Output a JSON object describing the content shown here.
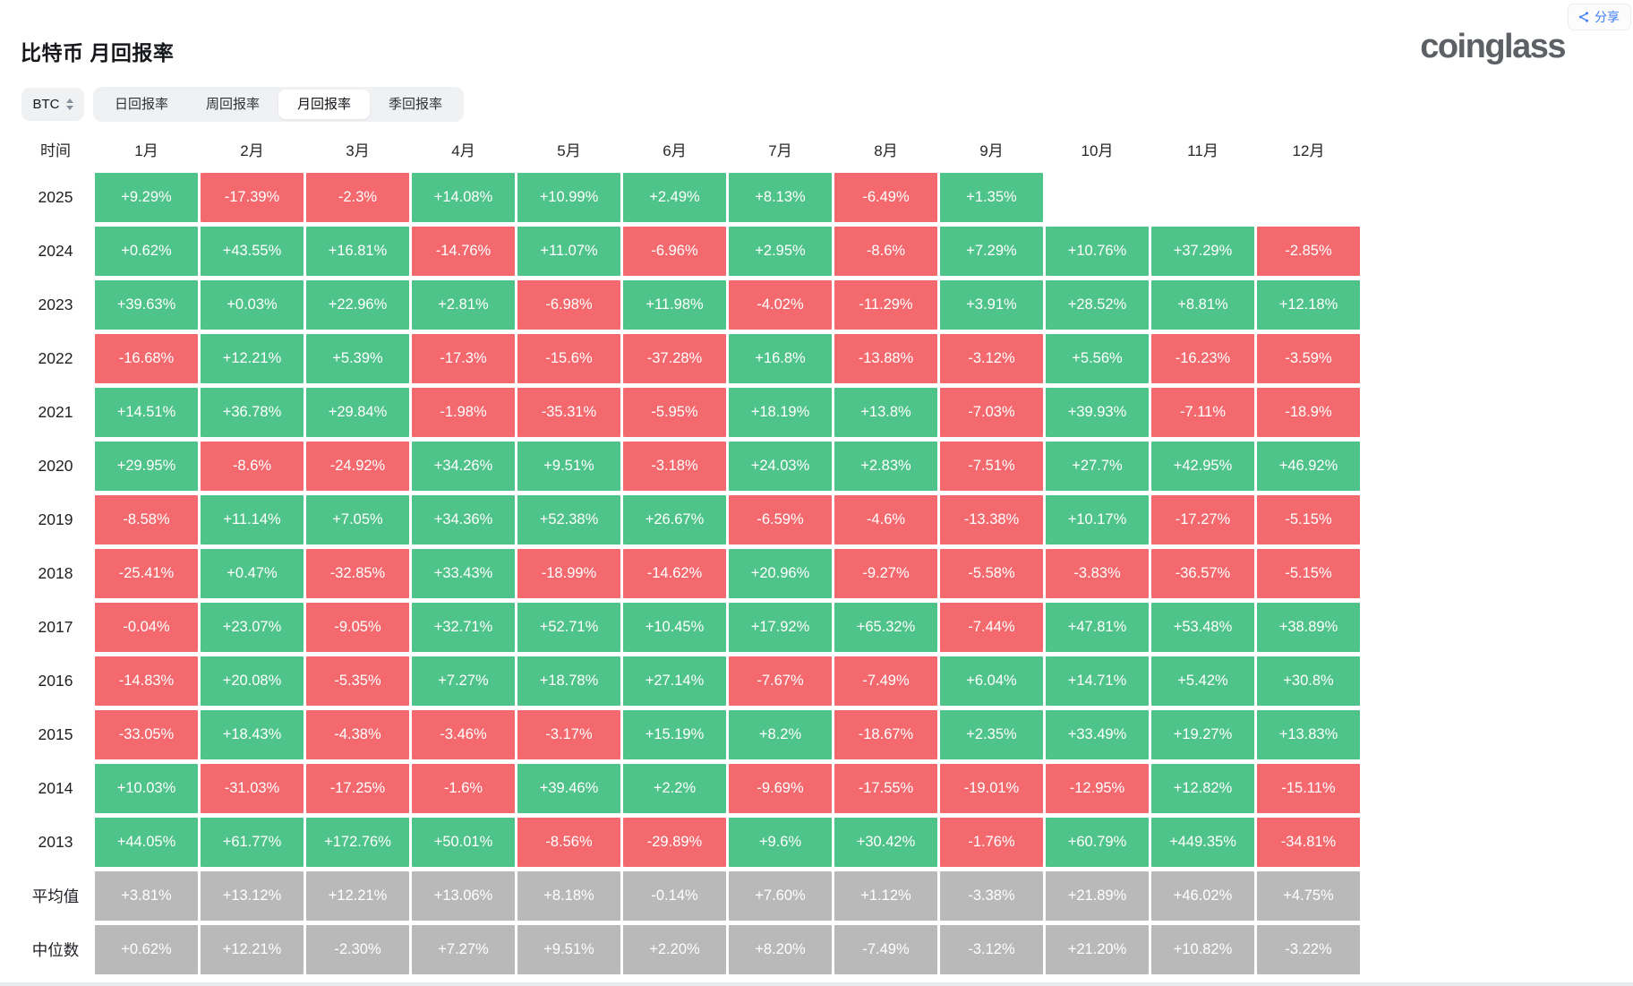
{
  "page": {
    "title": "比特币 月回报率",
    "logo": "coinglass",
    "share": {
      "label": "分享"
    }
  },
  "controls": {
    "coin_selector": {
      "value": "BTC"
    },
    "tabs": [
      {
        "label": "日回报率",
        "active": false
      },
      {
        "label": "周回报率",
        "active": false
      },
      {
        "label": "月回报率",
        "active": true
      },
      {
        "label": "季回报率",
        "active": false
      }
    ]
  },
  "colors": {
    "positive": "#4FC48A",
    "negative": "#F4696E",
    "neutral": "#B9B9B9",
    "accent_blue": "#3E7EF7",
    "logo_gray": "#5D6166"
  },
  "chart_data": {
    "type": "heatmap",
    "title": "比特币 月回报率",
    "columns": [
      "时间",
      "1月",
      "2月",
      "3月",
      "4月",
      "5月",
      "6月",
      "7月",
      "8月",
      "9月",
      "10月",
      "11月",
      "12月"
    ],
    "legend": {
      "positive": "green",
      "negative": "red",
      "summary": "gray"
    },
    "rows": [
      {
        "label": "2025",
        "kind": "year",
        "values": [
          "+9.29%",
          "-17.39%",
          "-2.3%",
          "+14.08%",
          "+10.99%",
          "+2.49%",
          "+8.13%",
          "-6.49%",
          "+1.35%",
          "",
          "",
          ""
        ]
      },
      {
        "label": "2024",
        "kind": "year",
        "values": [
          "+0.62%",
          "+43.55%",
          "+16.81%",
          "-14.76%",
          "+11.07%",
          "-6.96%",
          "+2.95%",
          "-8.6%",
          "+7.29%",
          "+10.76%",
          "+37.29%",
          "-2.85%"
        ]
      },
      {
        "label": "2023",
        "kind": "year",
        "values": [
          "+39.63%",
          "+0.03%",
          "+22.96%",
          "+2.81%",
          "-6.98%",
          "+11.98%",
          "-4.02%",
          "-11.29%",
          "+3.91%",
          "+28.52%",
          "+8.81%",
          "+12.18%"
        ]
      },
      {
        "label": "2022",
        "kind": "year",
        "values": [
          "-16.68%",
          "+12.21%",
          "+5.39%",
          "-17.3%",
          "-15.6%",
          "-37.28%",
          "+16.8%",
          "-13.88%",
          "-3.12%",
          "+5.56%",
          "-16.23%",
          "-3.59%"
        ]
      },
      {
        "label": "2021",
        "kind": "year",
        "values": [
          "+14.51%",
          "+36.78%",
          "+29.84%",
          "-1.98%",
          "-35.31%",
          "-5.95%",
          "+18.19%",
          "+13.8%",
          "-7.03%",
          "+39.93%",
          "-7.11%",
          "-18.9%"
        ]
      },
      {
        "label": "2020",
        "kind": "year",
        "values": [
          "+29.95%",
          "-8.6%",
          "-24.92%",
          "+34.26%",
          "+9.51%",
          "-3.18%",
          "+24.03%",
          "+2.83%",
          "-7.51%",
          "+27.7%",
          "+42.95%",
          "+46.92%"
        ]
      },
      {
        "label": "2019",
        "kind": "year",
        "values": [
          "-8.58%",
          "+11.14%",
          "+7.05%",
          "+34.36%",
          "+52.38%",
          "+26.67%",
          "-6.59%",
          "-4.6%",
          "-13.38%",
          "+10.17%",
          "-17.27%",
          "-5.15%"
        ]
      },
      {
        "label": "2018",
        "kind": "year",
        "values": [
          "-25.41%",
          "+0.47%",
          "-32.85%",
          "+33.43%",
          "-18.99%",
          "-14.62%",
          "+20.96%",
          "-9.27%",
          "-5.58%",
          "-3.83%",
          "-36.57%",
          "-5.15%"
        ]
      },
      {
        "label": "2017",
        "kind": "year",
        "values": [
          "-0.04%",
          "+23.07%",
          "-9.05%",
          "+32.71%",
          "+52.71%",
          "+10.45%",
          "+17.92%",
          "+65.32%",
          "-7.44%",
          "+47.81%",
          "+53.48%",
          "+38.89%"
        ]
      },
      {
        "label": "2016",
        "kind": "year",
        "values": [
          "-14.83%",
          "+20.08%",
          "-5.35%",
          "+7.27%",
          "+18.78%",
          "+27.14%",
          "-7.67%",
          "-7.49%",
          "+6.04%",
          "+14.71%",
          "+5.42%",
          "+30.8%"
        ]
      },
      {
        "label": "2015",
        "kind": "year",
        "values": [
          "-33.05%",
          "+18.43%",
          "-4.38%",
          "-3.46%",
          "-3.17%",
          "+15.19%",
          "+8.2%",
          "-18.67%",
          "+2.35%",
          "+33.49%",
          "+19.27%",
          "+13.83%"
        ]
      },
      {
        "label": "2014",
        "kind": "year",
        "values": [
          "+10.03%",
          "-31.03%",
          "-17.25%",
          "-1.6%",
          "+39.46%",
          "+2.2%",
          "-9.69%",
          "-17.55%",
          "-19.01%",
          "-12.95%",
          "+12.82%",
          "-15.11%"
        ]
      },
      {
        "label": "2013",
        "kind": "year",
        "values": [
          "+44.05%",
          "+61.77%",
          "+172.76%",
          "+50.01%",
          "-8.56%",
          "-29.89%",
          "+9.6%",
          "+30.42%",
          "-1.76%",
          "+60.79%",
          "+449.35%",
          "-34.81%"
        ]
      },
      {
        "label": "平均值",
        "kind": "summary",
        "values": [
          "+3.81%",
          "+13.12%",
          "+12.21%",
          "+13.06%",
          "+8.18%",
          "-0.14%",
          "+7.60%",
          "+1.12%",
          "-3.38%",
          "+21.89%",
          "+46.02%",
          "+4.75%"
        ]
      },
      {
        "label": "中位数",
        "kind": "summary",
        "values": [
          "+0.62%",
          "+12.21%",
          "-2.30%",
          "+7.27%",
          "+9.51%",
          "+2.20%",
          "+8.20%",
          "-7.49%",
          "-3.12%",
          "+21.20%",
          "+10.82%",
          "-3.22%"
        ]
      }
    ]
  }
}
